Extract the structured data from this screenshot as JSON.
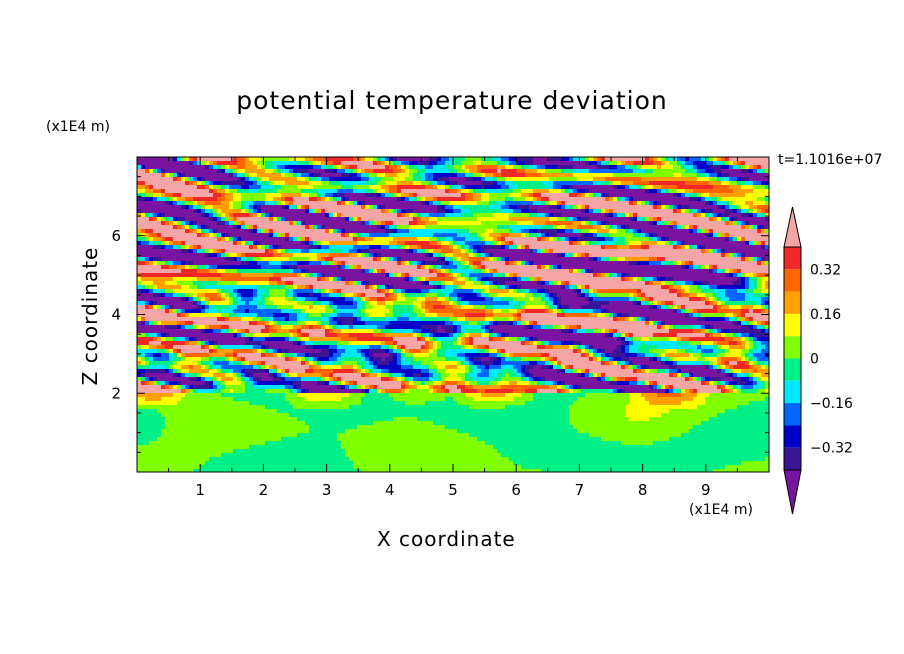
{
  "chart_data": {
    "type": "heatmap",
    "title": "potential temperature deviation",
    "xlabel": "X coordinate",
    "ylabel": "Z coordinate",
    "x_unit": "(x1E4 m)",
    "y_unit": "(x1E4 m)",
    "time_label": "t=1.1016e+07",
    "xlim": [
      0,
      10
    ],
    "ylim": [
      0,
      8
    ],
    "x_ticks": [
      "1",
      "2",
      "3",
      "4",
      "5",
      "6",
      "7",
      "8",
      "9"
    ],
    "y_ticks": [
      "2",
      "4",
      "6"
    ],
    "colorbar": {
      "tick_labels": [
        "0.32",
        "0.16",
        "0",
        "-0.16",
        "-0.32"
      ],
      "tick_values": [
        0.32,
        0.16,
        0,
        -0.16,
        -0.32
      ],
      "levels": [
        {
          "from": 0.4,
          "to": null,
          "color": "#f4a6a6"
        },
        {
          "from": 0.32,
          "to": 0.4,
          "color": "#f02828"
        },
        {
          "from": 0.24,
          "to": 0.32,
          "color": "#ff6400"
        },
        {
          "from": 0.16,
          "to": 0.24,
          "color": "#ffa000"
        },
        {
          "from": 0.08,
          "to": 0.16,
          "color": "#ffff00"
        },
        {
          "from": 0.0,
          "to": 0.08,
          "color": "#80ff00"
        },
        {
          "from": -0.08,
          "to": 0.0,
          "color": "#00f088"
        },
        {
          "from": -0.16,
          "to": -0.08,
          "color": "#00e8ff"
        },
        {
          "from": -0.24,
          "to": -0.16,
          "color": "#0064ff"
        },
        {
          "from": -0.32,
          "to": -0.24,
          "color": "#0000c8"
        },
        {
          "from": -0.4,
          "to": -0.32,
          "color": "#3c1496"
        },
        {
          "from": null,
          "to": -0.4,
          "color": "#7814a0"
        }
      ]
    },
    "field_description_layers": [
      {
        "z_range": [
          0,
          2.0
        ],
        "dominant_levels": [
          0.04,
          -0.04
        ]
      },
      {
        "z_range": [
          2.0,
          4.5
        ],
        "dominant_levels": [
          0.45,
          -0.45,
          0.2,
          -0.2,
          0.3
        ]
      },
      {
        "z_range": [
          4.5,
          8.0
        ],
        "dominant_levels": [
          0.45,
          -0.45
        ]
      }
    ]
  }
}
